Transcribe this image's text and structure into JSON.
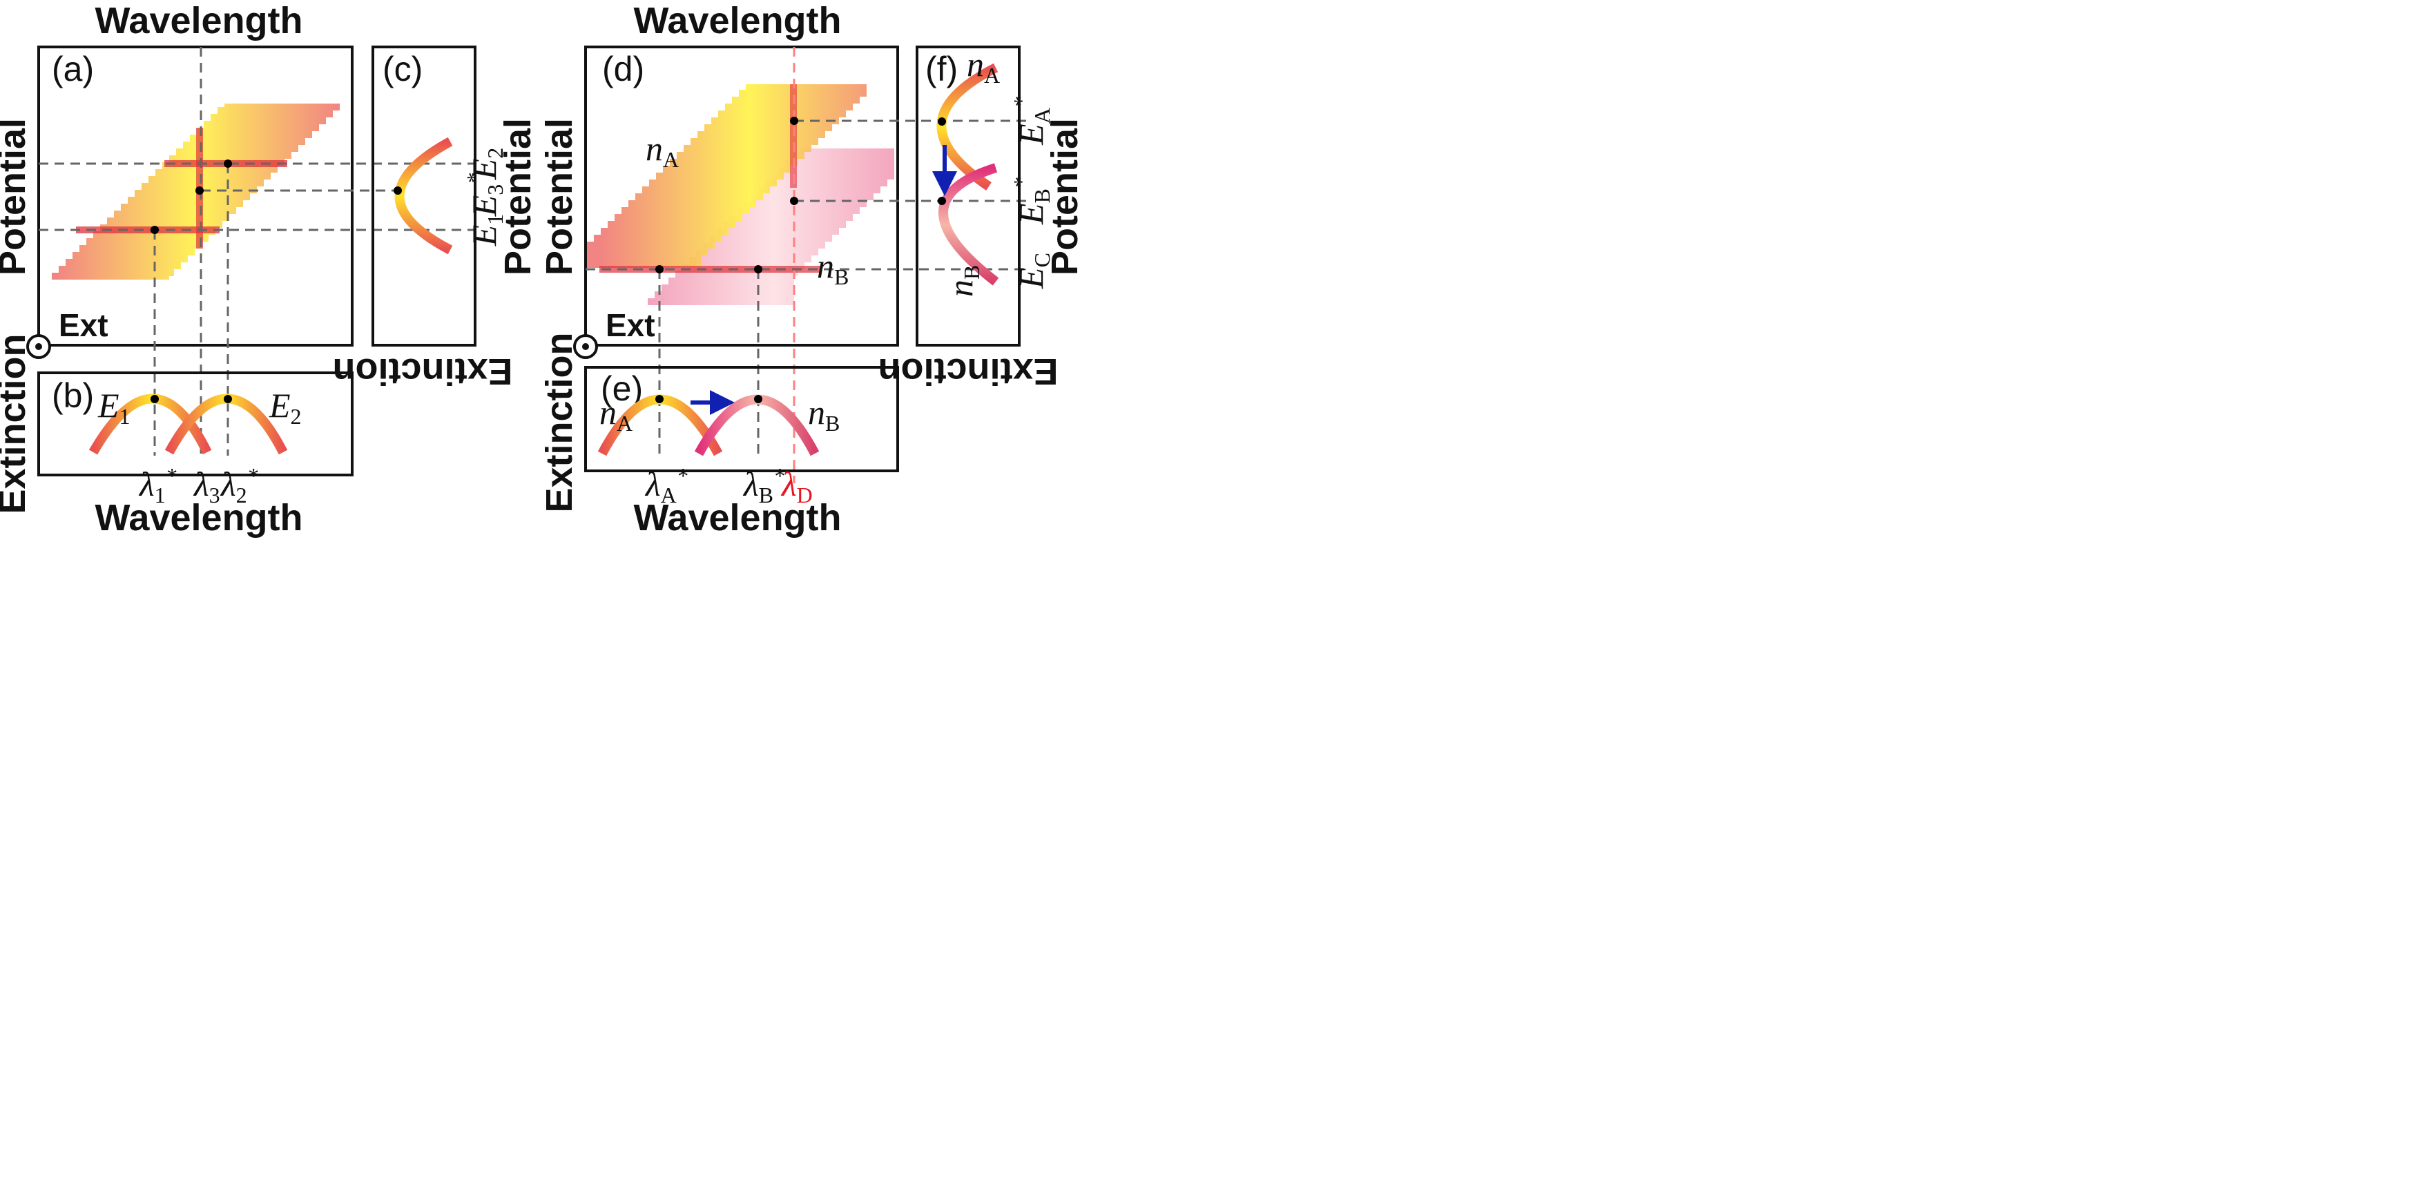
{
  "left": {
    "top_title": "Wavelength",
    "bottom_title": "Wavelength",
    "main_panel": {
      "tag": "(a)",
      "ext_label": "Ext",
      "y_title": "Potential"
    },
    "ext_panel": {
      "tag": "(b)",
      "y_title": "Extinction",
      "curve_labels": [
        {
          "main": "E",
          "sub": "1"
        },
        {
          "main": "E",
          "sub": "2"
        }
      ]
    },
    "right_panel": {
      "tag": "(c)",
      "title": "Extinction",
      "potential_labels": [
        {
          "main": "E",
          "sub": "2",
          "sup": ""
        },
        {
          "main": "E",
          "sub": "3",
          "sup": "*"
        },
        {
          "main": "E",
          "sub": "1",
          "sup": ""
        }
      ]
    },
    "right_axis_title": "Potential",
    "wavelength_ticks": [
      {
        "main": "λ",
        "sub": "1",
        "sup": "*"
      },
      {
        "main": "λ",
        "sub": "3",
        "sup": ""
      },
      {
        "main": "λ",
        "sub": "2",
        "sup": "*"
      }
    ]
  },
  "right": {
    "top_title": "Wavelength",
    "bottom_title": "Wavelength",
    "main_panel": {
      "tag": "(d)",
      "ext_label": "Ext",
      "y_title": "Potential",
      "band_labels": [
        {
          "main": "n",
          "sub": "A"
        },
        {
          "main": "n",
          "sub": "B"
        }
      ]
    },
    "ext_panel": {
      "tag": "(e)",
      "y_title": "Extinction",
      "curve_labels": [
        {
          "main": "n",
          "sub": "A"
        },
        {
          "main": "n",
          "sub": "B"
        }
      ]
    },
    "right_panel": {
      "tag": "(f)",
      "title": "Extinction",
      "curve_labels": [
        {
          "main": "n",
          "sub": "A"
        },
        {
          "main": "n",
          "sub": "B"
        }
      ],
      "potential_labels": [
        {
          "main": "E",
          "sub": "A",
          "sup": "*"
        },
        {
          "main": "E",
          "sub": "B",
          "sup": "*"
        },
        {
          "main": "E",
          "sub": "C",
          "sup": ""
        }
      ]
    },
    "right_axis_title": "Potential",
    "wavelength_ticks": [
      {
        "main": "λ",
        "sub": "A",
        "sup": "*",
        "color": "#111111"
      },
      {
        "main": "λ",
        "sub": "B",
        "sup": "*",
        "color": "#111111"
      },
      {
        "main": "λ",
        "sub": "D",
        "sup": "",
        "color": "#e8141e"
      }
    ]
  },
  "colors": {
    "band_yellow": "#fff23a",
    "band_red": "#f06a6a",
    "band_pink": "#f5a7c8",
    "band_darkred": "#e0323c",
    "arrow_blue": "#1020b0",
    "lambda_d_red": "#e8141e"
  }
}
